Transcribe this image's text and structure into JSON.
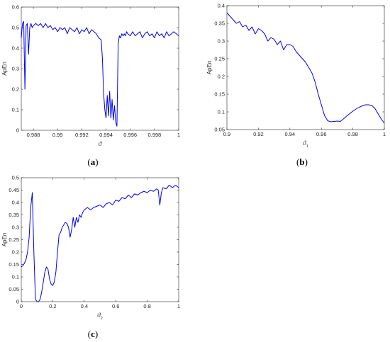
{
  "chart_data": [
    {
      "id": "a",
      "type": "line",
      "panel_label": "(a)",
      "panel_letter": "a",
      "xlabel_symbol": "ϑ",
      "xlabel_sub": "",
      "ylabel": "ApEn",
      "xlim": [
        0.987,
        1.0
      ],
      "ylim": [
        0,
        0.6
      ],
      "xticks": [
        0.988,
        0.99,
        0.992,
        0.994,
        0.996,
        0.998,
        1
      ],
      "xtick_labels": [
        "0.988",
        "0.99",
        "0.992",
        "0.994",
        "0.996",
        "0.998",
        "1"
      ],
      "yticks": [
        0,
        0.1,
        0.2,
        0.3,
        0.4,
        0.5,
        0.6
      ],
      "ytick_labels": [
        "0",
        "0.1",
        "0.2",
        "0.3",
        "0.4",
        "0.5",
        "0.6"
      ],
      "color": "#0000ee",
      "series": [
        {
          "x": [
            0.987,
            0.9871,
            0.9872,
            0.9873,
            0.9874,
            0.9875,
            0.9876,
            0.9877,
            0.9878,
            0.9879,
            0.988,
            0.9882,
            0.9884,
            0.9886,
            0.9888,
            0.989,
            0.9892,
            0.9894,
            0.9896,
            0.9898,
            0.99,
            0.9902,
            0.9904,
            0.9906,
            0.9908,
            0.991,
            0.9912,
            0.9914,
            0.9916,
            0.9918,
            0.992,
            0.9922,
            0.9924,
            0.9926,
            0.9928,
            0.993,
            0.9932,
            0.9934,
            0.9936,
            0.9937,
            0.9938,
            0.9939,
            0.994,
            0.9941,
            0.9942,
            0.9943,
            0.9944,
            0.9945,
            0.9946,
            0.9947,
            0.9948,
            0.9949,
            0.995,
            0.9951,
            0.9952,
            0.9953,
            0.9954,
            0.9955,
            0.9956,
            0.9957,
            0.9958,
            0.996,
            0.9962,
            0.9964,
            0.9966,
            0.9968,
            0.997,
            0.9972,
            0.9974,
            0.9976,
            0.9978,
            0.998,
            0.9982,
            0.9984,
            0.9986,
            0.9988,
            0.999,
            0.9992,
            0.9994,
            0.9996,
            0.9998,
            1.0
          ],
          "y": [
            0.45,
            0.52,
            0.53,
            0.2,
            0.51,
            0.52,
            0.37,
            0.5,
            0.52,
            0.5,
            0.51,
            0.52,
            0.51,
            0.52,
            0.5,
            0.52,
            0.5,
            0.51,
            0.49,
            0.5,
            0.48,
            0.5,
            0.49,
            0.5,
            0.47,
            0.5,
            0.49,
            0.48,
            0.5,
            0.47,
            0.49,
            0.48,
            0.5,
            0.47,
            0.49,
            0.48,
            0.47,
            0.45,
            0.44,
            0.35,
            0.18,
            0.1,
            0.06,
            0.17,
            0.07,
            0.19,
            0.06,
            0.15,
            0.05,
            0.12,
            0.04,
            0.02,
            0.42,
            0.46,
            0.45,
            0.47,
            0.46,
            0.47,
            0.46,
            0.48,
            0.47,
            0.46,
            0.48,
            0.46,
            0.47,
            0.48,
            0.45,
            0.47,
            0.48,
            0.46,
            0.47,
            0.45,
            0.48,
            0.46,
            0.47,
            0.45,
            0.48,
            0.46,
            0.47,
            0.48,
            0.47,
            0.46
          ]
        }
      ]
    },
    {
      "id": "b",
      "type": "line",
      "panel_label": "(b)",
      "panel_letter": "b",
      "xlabel_symbol": "ϑ",
      "xlabel_sub": "1",
      "ylabel": "ApEn",
      "xlim": [
        0.9,
        1.0
      ],
      "ylim": [
        0.05,
        0.4
      ],
      "xticks": [
        0.9,
        0.92,
        0.94,
        0.96,
        0.98,
        1
      ],
      "xtick_labels": [
        "0.9",
        "0.92",
        "0.94",
        "0.96",
        "0.98",
        "1"
      ],
      "yticks": [
        0.05,
        0.1,
        0.15,
        0.2,
        0.25,
        0.3,
        0.35,
        0.4
      ],
      "ytick_labels": [
        "0.05",
        "0.1",
        "0.15",
        "0.2",
        "0.25",
        "0.3",
        "0.35",
        "0.4"
      ],
      "color": "#0000ee",
      "series": [
        {
          "x": [
            0.9,
            0.902,
            0.904,
            0.906,
            0.908,
            0.91,
            0.912,
            0.914,
            0.916,
            0.918,
            0.92,
            0.922,
            0.924,
            0.926,
            0.928,
            0.93,
            0.932,
            0.934,
            0.936,
            0.938,
            0.94,
            0.942,
            0.944,
            0.946,
            0.948,
            0.95,
            0.952,
            0.954,
            0.956,
            0.958,
            0.96,
            0.962,
            0.964,
            0.966,
            0.968,
            0.97,
            0.972,
            0.974,
            0.976,
            0.978,
            0.98,
            0.982,
            0.984,
            0.986,
            0.988,
            0.99,
            0.992,
            0.994,
            0.996,
            0.998,
            1.0
          ],
          "y": [
            0.38,
            0.37,
            0.36,
            0.35,
            0.355,
            0.34,
            0.345,
            0.33,
            0.34,
            0.32,
            0.335,
            0.33,
            0.32,
            0.3,
            0.31,
            0.305,
            0.29,
            0.3,
            0.275,
            0.29,
            0.29,
            0.285,
            0.27,
            0.26,
            0.25,
            0.24,
            0.225,
            0.21,
            0.185,
            0.15,
            0.12,
            0.09,
            0.075,
            0.072,
            0.073,
            0.074,
            0.073,
            0.08,
            0.088,
            0.095,
            0.102,
            0.108,
            0.113,
            0.117,
            0.12,
            0.12,
            0.118,
            0.11,
            0.095,
            0.08,
            0.068
          ]
        }
      ]
    },
    {
      "id": "c",
      "type": "line",
      "panel_label": "(c)",
      "panel_letter": "c",
      "xlabel_symbol": "ϑ",
      "xlabel_sub": "2",
      "ylabel": "ApEn",
      "xlim": [
        0,
        1
      ],
      "ylim": [
        0,
        0.5
      ],
      "xticks": [
        0,
        0.2,
        0.4,
        0.6,
        0.8,
        1
      ],
      "xtick_labels": [
        "0",
        "0.2",
        "0.4",
        "0.6",
        "0.8",
        "1"
      ],
      "yticks": [
        0,
        0.05,
        0.1,
        0.15,
        0.2,
        0.25,
        0.3,
        0.35,
        0.4,
        0.45,
        0.5
      ],
      "ytick_labels": [
        "0",
        "0.05",
        "0.1",
        "0.15",
        "0.2",
        "0.25",
        "0.3",
        "0.35",
        "0.4",
        "0.45",
        "0.5"
      ],
      "color": "#0000ee",
      "series": [
        {
          "x": [
            0,
            0.01,
            0.02,
            0.03,
            0.04,
            0.05,
            0.06,
            0.07,
            0.08,
            0.09,
            0.1,
            0.11,
            0.12,
            0.13,
            0.14,
            0.15,
            0.16,
            0.17,
            0.18,
            0.19,
            0.2,
            0.21,
            0.22,
            0.23,
            0.24,
            0.25,
            0.26,
            0.27,
            0.28,
            0.29,
            0.3,
            0.31,
            0.32,
            0.33,
            0.34,
            0.35,
            0.36,
            0.37,
            0.38,
            0.39,
            0.4,
            0.42,
            0.44,
            0.46,
            0.48,
            0.5,
            0.52,
            0.54,
            0.56,
            0.58,
            0.6,
            0.62,
            0.64,
            0.66,
            0.68,
            0.7,
            0.72,
            0.74,
            0.76,
            0.78,
            0.8,
            0.82,
            0.84,
            0.86,
            0.87,
            0.88,
            0.89,
            0.9,
            0.92,
            0.94,
            0.96,
            0.98,
            1.0
          ],
          "y": [
            0.14,
            0.145,
            0.155,
            0.17,
            0.2,
            0.26,
            0.38,
            0.44,
            0.2,
            0.01,
            0.0,
            0.0,
            0.01,
            0.04,
            0.08,
            0.12,
            0.14,
            0.13,
            0.09,
            0.07,
            0.065,
            0.08,
            0.12,
            0.2,
            0.27,
            0.28,
            0.3,
            0.31,
            0.32,
            0.315,
            0.3,
            0.26,
            0.29,
            0.34,
            0.3,
            0.34,
            0.32,
            0.35,
            0.34,
            0.36,
            0.37,
            0.38,
            0.37,
            0.38,
            0.385,
            0.39,
            0.38,
            0.395,
            0.4,
            0.39,
            0.41,
            0.405,
            0.42,
            0.415,
            0.43,
            0.42,
            0.435,
            0.43,
            0.44,
            0.445,
            0.44,
            0.45,
            0.445,
            0.455,
            0.45,
            0.39,
            0.44,
            0.46,
            0.455,
            0.47,
            0.46,
            0.47,
            0.46
          ]
        }
      ]
    }
  ]
}
